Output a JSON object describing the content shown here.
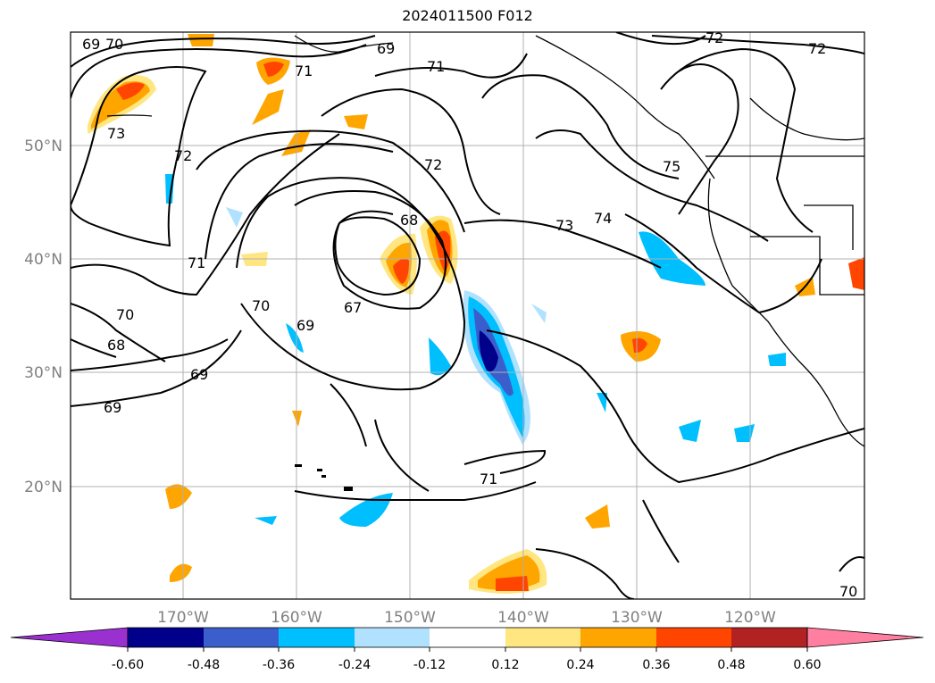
{
  "title": "2024011500 F012",
  "lat_labels": [
    "50°N",
    "40°N",
    "30°N",
    "20°N"
  ],
  "lon_labels": [
    "170°W",
    "160°W",
    "150°W",
    "140°W",
    "130°W",
    "120°W"
  ],
  "contour_labels": [
    "69",
    "70",
    "69",
    "71",
    "72",
    "73",
    "72",
    "72",
    "71",
    "68",
    "67",
    "70",
    "69",
    "71",
    "70",
    "68",
    "69",
    "69",
    "73",
    "74",
    "75",
    "72",
    "71",
    "70"
  ],
  "colorbar": {
    "ticks": [
      "-0.60",
      "-0.48",
      "-0.36",
      "-0.24",
      "-0.12",
      "0.12",
      "0.24",
      "0.36",
      "0.48",
      "0.60"
    ],
    "colors": [
      "#9b30d0",
      "#00008b",
      "#3a5fcd",
      "#00bfff",
      "#b0e2ff",
      "#ffffff",
      "#ffe680",
      "#ffa500",
      "#ff4500",
      "#b22222",
      "#ff7fa0"
    ]
  },
  "colors": {
    "contour": "#000000",
    "grid": "#b0b0b0",
    "coast": "#000000"
  }
}
